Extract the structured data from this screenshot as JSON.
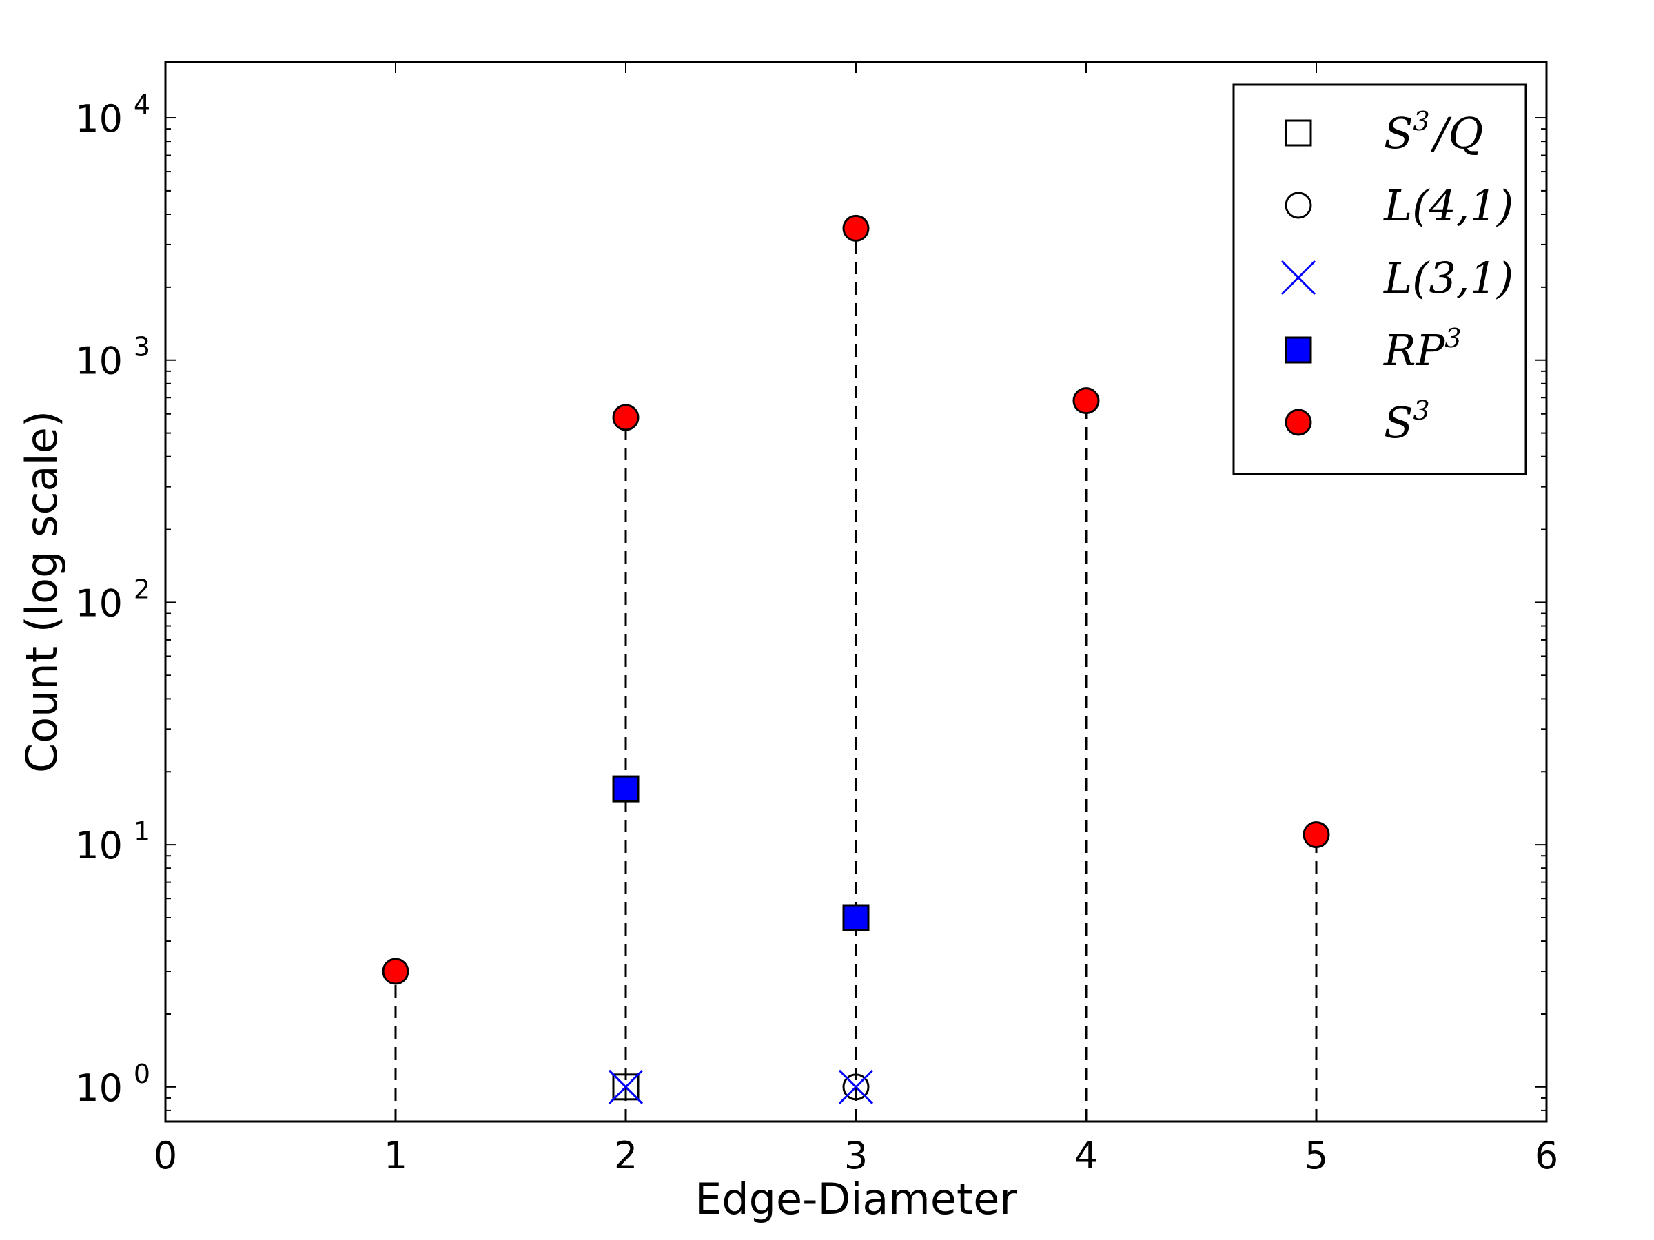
{
  "chart_data": {
    "type": "scatter",
    "title": "",
    "xlabel": "Edge-Diameter",
    "ylabel": "Count (log scale)",
    "xlim": [
      0,
      6
    ],
    "ylim": [
      0.72,
      17000
    ],
    "yscale": "log",
    "grid": false,
    "legend_position": "top-right",
    "x_ticks": [
      "0",
      "1",
      "2",
      "3",
      "4",
      "5",
      "6"
    ],
    "y_ticks": [
      {
        "base": "10",
        "exp": "0"
      },
      {
        "base": "10",
        "exp": "1"
      },
      {
        "base": "10",
        "exp": "2"
      },
      {
        "base": "10",
        "exp": "3"
      },
      {
        "base": "10",
        "exp": "4"
      }
    ],
    "stems": {
      "style": "dashed",
      "color": "#000000"
    },
    "series": [
      {
        "name": "S³/Q",
        "label_main": "S",
        "label_sup": "3",
        "label_tail": "/Q",
        "marker": "square-open",
        "color": "#000000",
        "points": [
          {
            "x": 2,
            "y": 1
          }
        ]
      },
      {
        "name": "L(4,1)",
        "label_main": "L(4,1)",
        "label_sup": "",
        "label_tail": "",
        "marker": "circle-open",
        "color": "#000000",
        "points": [
          {
            "x": 3,
            "y": 1
          }
        ]
      },
      {
        "name": "L(3,1)",
        "label_main": "L(3,1)",
        "label_sup": "",
        "label_tail": "",
        "marker": "x",
        "color": "#0000ff",
        "points": [
          {
            "x": 2,
            "y": 1
          },
          {
            "x": 3,
            "y": 1
          }
        ]
      },
      {
        "name": "RP³",
        "label_main": "RP",
        "label_sup": "3",
        "label_tail": "",
        "marker": "square-filled",
        "color": "#0000ff",
        "points": [
          {
            "x": 2,
            "y": 17
          },
          {
            "x": 3,
            "y": 5
          }
        ]
      },
      {
        "name": "S³",
        "label_main": "S",
        "label_sup": "3",
        "label_tail": "",
        "marker": "circle-filled",
        "color": "#ff0000",
        "points": [
          {
            "x": 1,
            "y": 3
          },
          {
            "x": 2,
            "y": 580
          },
          {
            "x": 3,
            "y": 3500
          },
          {
            "x": 4,
            "y": 680
          },
          {
            "x": 5,
            "y": 11
          }
        ]
      }
    ]
  }
}
